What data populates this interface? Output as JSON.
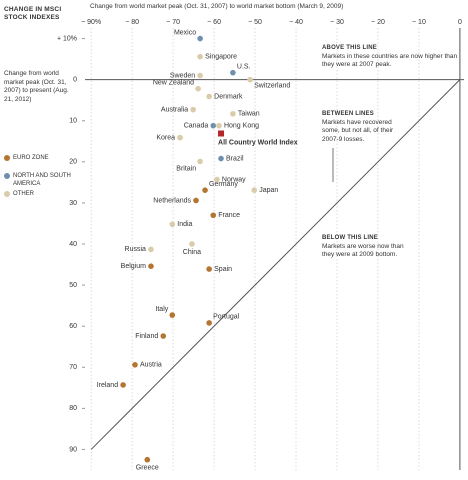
{
  "chart_data": {
    "type": "scatter",
    "title": "CHANGE IN MSCI STOCK INDEXES",
    "x_label": "Change from world market peak (Oct. 31, 2007) to world market bottom (March 9, 2009)",
    "y_label": "Change from world market peak (Oct. 31, 2007) to present (Aug. 21, 2012)",
    "xlim": [
      -91.5,
      1
    ],
    "ylim": [
      -95,
      11.6
    ],
    "xticks": [
      {
        "value": -90,
        "label": "− 90%"
      },
      {
        "value": -80,
        "label": "− 80"
      },
      {
        "value": -70,
        "label": "− 70"
      },
      {
        "value": -60,
        "label": "− 60"
      },
      {
        "value": -50,
        "label": "− 50"
      },
      {
        "value": -40,
        "label": "− 40"
      },
      {
        "value": -30,
        "label": "− 30"
      },
      {
        "value": -20,
        "label": "− 20"
      },
      {
        "value": -10,
        "label": "− 10"
      },
      0
    ],
    "yticks": [
      {
        "value": 10,
        "label": "+ 10%"
      },
      0,
      {
        "value": -10,
        "label": "10"
      },
      {
        "value": -20,
        "label": "20"
      },
      {
        "value": -30,
        "label": "30"
      },
      {
        "value": -40,
        "label": "40"
      },
      {
        "value": -50,
        "label": "50"
      },
      {
        "value": -60,
        "label": "60"
      },
      {
        "value": -70,
        "label": "70"
      },
      {
        "value": -80,
        "label": "80"
      },
      {
        "value": -90,
        "label": "90"
      }
    ],
    "grid": true,
    "series": [
      {
        "name": "EURO ZONE",
        "color": "#b5742f",
        "labels": [
          "Germany",
          "Netherlands",
          "France",
          "Belgium",
          "Spain",
          "Italy",
          "Portugal",
          "Finland",
          "Austria",
          "Ireland",
          "Greece"
        ],
        "x": [
          -62.2,
          -64.4,
          -60.2,
          -75.4,
          -61.2,
          -70.2,
          -61.2,
          -72.4,
          -79.3,
          -82.2,
          -76.3
        ],
        "y": [
          -26.9,
          -29.4,
          -33,
          -45.4,
          -46.1,
          -57.3,
          -59.2,
          -62.4,
          -69.4,
          -74.3,
          -92.5
        ]
      },
      {
        "name": "NORTH AND SOUTH AMERICA",
        "color": "#6f8fae",
        "labels": [
          "Mexico",
          "U.S.",
          "Canada",
          "Brazil"
        ],
        "x": [
          -63.4,
          -55.4,
          -60.2,
          -58.3
        ],
        "y": [
          10,
          1.7,
          -11.2,
          -19.2
        ]
      },
      {
        "name": "OTHER",
        "color": "#dacbaa",
        "labels": [
          "Singapore",
          "Sweden",
          "Switzerland",
          "New Zealand",
          "Denmark",
          "Australia",
          "Taiwan",
          "Hong Kong",
          "Korea",
          "Britain",
          "Norway",
          "Japan",
          "India",
          "Russia",
          "China"
        ],
        "x": [
          -63.4,
          -63.4,
          -51.2,
          -63.9,
          -61.2,
          -65.1,
          -55.4,
          -58.8,
          -68.3,
          -63.4,
          -59.3,
          -50.2,
          -70.2,
          -75.4,
          -65.4
        ],
        "y": [
          5.6,
          1,
          0,
          -2.2,
          -4.1,
          -7.3,
          -8.3,
          -11.2,
          -14.1,
          -19.9,
          -24.3,
          -26.9,
          -35.2,
          -41.3,
          -40
        ]
      }
    ],
    "index": {
      "label": "All Country World Index",
      "x": -58.3,
      "y": -13.1,
      "color": "#b3262a"
    },
    "annotations": [
      {
        "heading": "ABOVE THIS LINE",
        "text": "Markets in these countries are now higher than they were at 2007 peak."
      },
      {
        "heading": "BETWEEN LINES",
        "text": "Markets have recovered some, but not all, of their 2007-9 losses."
      },
      {
        "heading": "BELOW THIS LINE",
        "text": "Markets are worse now than they were at 2009 bottom."
      }
    ]
  }
}
